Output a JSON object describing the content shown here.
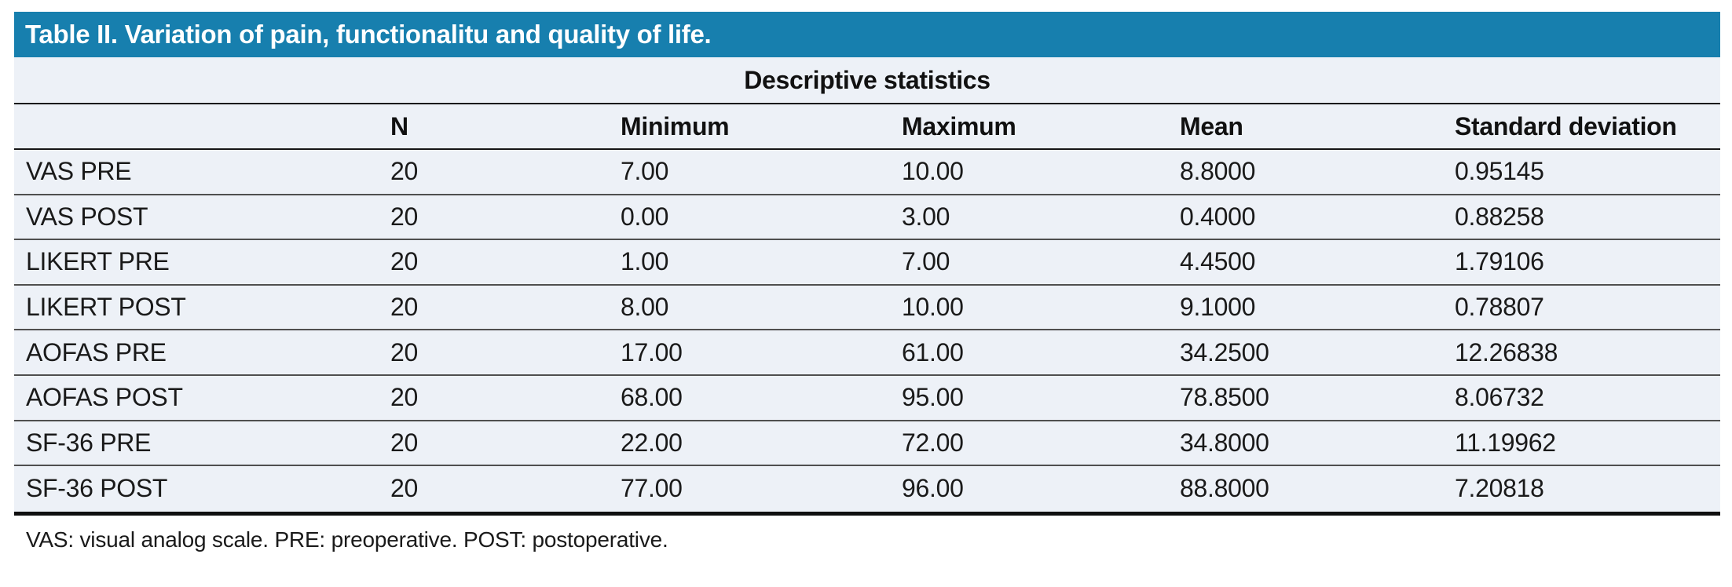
{
  "table": {
    "title": "Table II. Variation of pain, functionalitu and quality of life.",
    "subheader": "Descriptive statistics",
    "columns": [
      "",
      "N",
      "Minimum",
      "Maximum",
      "Mean",
      "Standard deviation"
    ],
    "rows": [
      {
        "label": "VAS PRE",
        "n": "20",
        "min": "7.00",
        "max": "10.00",
        "mean": "8.8000",
        "sd": "0.95145"
      },
      {
        "label": "VAS POST",
        "n": "20",
        "min": "0.00",
        "max": "3.00",
        "mean": "0.4000",
        "sd": "0.88258"
      },
      {
        "label": "LIKERT PRE",
        "n": "20",
        "min": "1.00",
        "max": "7.00",
        "mean": "4.4500",
        "sd": "1.79106"
      },
      {
        "label": "LIKERT POST",
        "n": "20",
        "min": "8.00",
        "max": "10.00",
        "mean": "9.1000",
        "sd": "0.78807"
      },
      {
        "label": "AOFAS PRE",
        "n": "20",
        "min": "17.00",
        "max": "61.00",
        "mean": "34.2500",
        "sd": "12.26838"
      },
      {
        "label": "AOFAS POST",
        "n": "20",
        "min": "68.00",
        "max": "95.00",
        "mean": "78.8500",
        "sd": "8.06732"
      },
      {
        "label": "SF-36 PRE",
        "n": "20",
        "min": "22.00",
        "max": "72.00",
        "mean": "34.8000",
        "sd": "11.19962"
      },
      {
        "label": "SF-36 POST",
        "n": "20",
        "min": "77.00",
        "max": "96.00",
        "mean": "88.8000",
        "sd": "7.20818"
      }
    ],
    "footnote": "VAS: visual analog scale. PRE: preoperative. POST: postoperative."
  },
  "colors": {
    "title_bar_bg": "#177fae",
    "title_text": "#ffffff",
    "row_bg": "#edf1f7",
    "rule_dark": "#161616",
    "rule_row": "#4f4f4f"
  },
  "chart_data": {
    "type": "table",
    "title": "Table II. Variation of pain, functionalitu and quality of life.",
    "subtitle": "Descriptive statistics",
    "columns": [
      "",
      "N",
      "Minimum",
      "Maximum",
      "Mean",
      "Standard deviation"
    ],
    "rows": [
      [
        "VAS PRE",
        20,
        7.0,
        10.0,
        8.8,
        0.95145
      ],
      [
        "VAS POST",
        20,
        0.0,
        3.0,
        0.4,
        0.88258
      ],
      [
        "LIKERT PRE",
        20,
        1.0,
        7.0,
        4.45,
        1.79106
      ],
      [
        "LIKERT POST",
        20,
        8.0,
        10.0,
        9.1,
        0.78807
      ],
      [
        "AOFAS PRE",
        20,
        17.0,
        61.0,
        34.25,
        12.26838
      ],
      [
        "AOFAS POST",
        20,
        68.0,
        95.0,
        78.85,
        8.06732
      ],
      [
        "SF-36 PRE",
        20,
        22.0,
        72.0,
        34.8,
        11.19962
      ],
      [
        "SF-36 POST",
        20,
        77.0,
        96.0,
        88.8,
        7.20818
      ]
    ]
  }
}
